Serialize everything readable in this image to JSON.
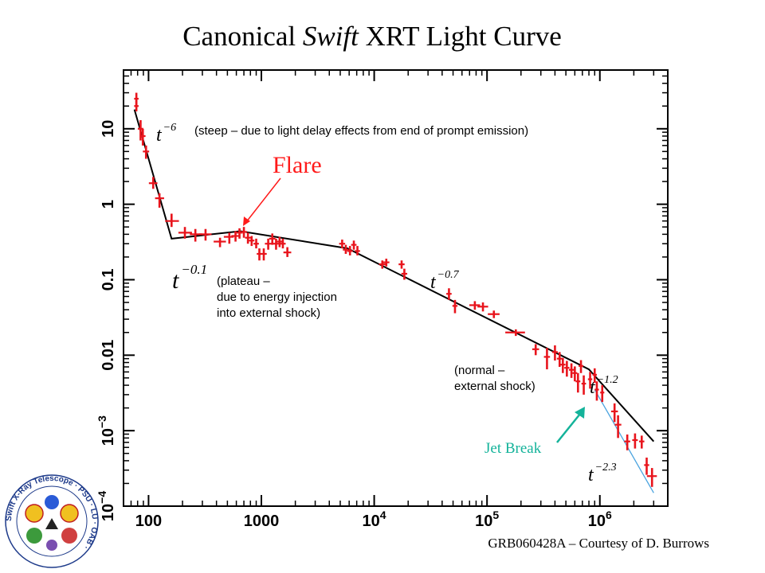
{
  "slide": {
    "title_pre": "Canonical ",
    "title_italic": "Swift",
    "title_post": " XRT Light Curve",
    "credit": "GRB060428A – Courtesy of D. Burrows",
    "logo": {
      "icon": "swift-xrt-telescope-logo",
      "ring_text": "Swift X-Ray Telescope · PSU · LU · OAB ·"
    },
    "colors": {
      "data": "#e8141c",
      "model": "#000000",
      "jet": "#14b39a",
      "jet_line": "#4aa3df",
      "flare": "#ff1a1a"
    }
  },
  "chart_data": {
    "type": "scatter",
    "title": "Canonical Swift XRT Light Curve",
    "xlabel": "",
    "ylabel": "",
    "xscale": "log",
    "yscale": "log",
    "xlim": [
      60,
      4000000
    ],
    "ylim": [
      0.0001,
      60
    ],
    "x_ticks": [
      {
        "value": 100,
        "label": "100"
      },
      {
        "value": 1000,
        "label": "1000"
      },
      {
        "value": 10000,
        "base": "10",
        "exp": "4"
      },
      {
        "value": 100000,
        "base": "10",
        "exp": "5"
      },
      {
        "value": 1000000,
        "base": "10",
        "exp": "6"
      }
    ],
    "y_ticks": [
      {
        "value": 0.0001,
        "base": "10",
        "exp": "−4"
      },
      {
        "value": 0.001,
        "base": "10",
        "exp": "−3"
      },
      {
        "value": 0.01,
        "label": "0.01"
      },
      {
        "value": 0.1,
        "label": "0.1"
      },
      {
        "value": 1,
        "label": "1"
      },
      {
        "value": 10,
        "label": "10"
      }
    ],
    "grid": false,
    "points": [
      {
        "x": 78,
        "y": 25,
        "yl": 20,
        "yh": 30,
        "xl": 77,
        "xh": 79
      },
      {
        "x": 78,
        "y": 20,
        "yl": 17,
        "yh": 24,
        "xl": 77,
        "xh": 79
      },
      {
        "x": 85,
        "y": 10,
        "yl": 7,
        "yh": 13,
        "xl": 83,
        "xh": 87
      },
      {
        "x": 89,
        "y": 8,
        "yl": 6,
        "yh": 10,
        "xl": 87,
        "xh": 91
      },
      {
        "x": 95,
        "y": 5,
        "yl": 4,
        "yh": 6,
        "xl": 92,
        "xh": 98
      },
      {
        "x": 110,
        "y": 1.9,
        "yl": 1.6,
        "yh": 2.3,
        "xl": 104,
        "xh": 116
      },
      {
        "x": 125,
        "y": 1.2,
        "yl": 0.9,
        "yh": 1.4,
        "xl": 118,
        "xh": 133
      },
      {
        "x": 160,
        "y": 0.6,
        "yl": 0.5,
        "yh": 0.75,
        "xl": 145,
        "xh": 180
      },
      {
        "x": 210,
        "y": 0.42,
        "yl": 0.35,
        "yh": 0.5,
        "xl": 190,
        "xh": 235
      },
      {
        "x": 260,
        "y": 0.4,
        "yl": 0.32,
        "yh": 0.47,
        "xl": 240,
        "xh": 290
      },
      {
        "x": 320,
        "y": 0.4,
        "yl": 0.33,
        "yh": 0.47,
        "xl": 290,
        "xh": 350
      },
      {
        "x": 430,
        "y": 0.32,
        "yl": 0.27,
        "yh": 0.36,
        "xl": 390,
        "xh": 470
      },
      {
        "x": 520,
        "y": 0.37,
        "yl": 0.3,
        "yh": 0.42,
        "xl": 480,
        "xh": 550
      },
      {
        "x": 590,
        "y": 0.38,
        "yl": 0.32,
        "yh": 0.44,
        "xl": 560,
        "xh": 620
      },
      {
        "x": 640,
        "y": 0.42,
        "yl": 0.35,
        "yh": 0.48,
        "xl": 620,
        "xh": 660
      },
      {
        "x": 700,
        "y": 0.43,
        "yl": 0.36,
        "yh": 0.5,
        "xl": 680,
        "xh": 720
      },
      {
        "x": 760,
        "y": 0.36,
        "yl": 0.3,
        "yh": 0.42,
        "xl": 740,
        "xh": 780
      },
      {
        "x": 820,
        "y": 0.33,
        "yl": 0.28,
        "yh": 0.38,
        "xl": 800,
        "xh": 840
      },
      {
        "x": 900,
        "y": 0.3,
        "yl": 0.26,
        "yh": 0.35,
        "xl": 880,
        "xh": 920
      },
      {
        "x": 960,
        "y": 0.22,
        "yl": 0.18,
        "yh": 0.26,
        "xl": 940,
        "xh": 980
      },
      {
        "x": 1050,
        "y": 0.22,
        "yl": 0.18,
        "yh": 0.26,
        "xl": 1020,
        "xh": 1080
      },
      {
        "x": 1150,
        "y": 0.3,
        "yl": 0.25,
        "yh": 0.35,
        "xl": 1110,
        "xh": 1190
      },
      {
        "x": 1250,
        "y": 0.35,
        "yl": 0.29,
        "yh": 0.41,
        "xl": 1210,
        "xh": 1290
      },
      {
        "x": 1350,
        "y": 0.3,
        "yl": 0.25,
        "yh": 0.35,
        "xl": 1310,
        "xh": 1390
      },
      {
        "x": 1450,
        "y": 0.32,
        "yl": 0.27,
        "yh": 0.37,
        "xl": 1410,
        "xh": 1490
      },
      {
        "x": 1550,
        "y": 0.3,
        "yl": 0.26,
        "yh": 0.35,
        "xl": 1510,
        "xh": 1590
      },
      {
        "x": 1700,
        "y": 0.23,
        "yl": 0.2,
        "yh": 0.27,
        "xl": 1620,
        "xh": 1780
      },
      {
        "x": 5200,
        "y": 0.3,
        "yl": 0.26,
        "yh": 0.34,
        "xl": 5050,
        "xh": 5350
      },
      {
        "x": 5600,
        "y": 0.25,
        "yl": 0.22,
        "yh": 0.29,
        "xl": 5450,
        "xh": 5750
      },
      {
        "x": 6100,
        "y": 0.24,
        "yl": 0.21,
        "yh": 0.28,
        "xl": 5950,
        "xh": 6250
      },
      {
        "x": 6600,
        "y": 0.29,
        "yl": 0.25,
        "yh": 0.33,
        "xl": 6450,
        "xh": 6750
      },
      {
        "x": 7100,
        "y": 0.24,
        "yl": 0.21,
        "yh": 0.28,
        "xl": 6950,
        "xh": 7250
      },
      {
        "x": 11800,
        "y": 0.16,
        "yl": 0.14,
        "yh": 0.18,
        "xl": 11400,
        "xh": 12200
      },
      {
        "x": 12800,
        "y": 0.17,
        "yl": 0.15,
        "yh": 0.19,
        "xl": 12400,
        "xh": 13200
      },
      {
        "x": 17500,
        "y": 0.16,
        "yl": 0.14,
        "yh": 0.18,
        "xl": 17000,
        "xh": 18000
      },
      {
        "x": 18500,
        "y": 0.12,
        "yl": 0.1,
        "yh": 0.14,
        "xl": 18000,
        "xh": 19000
      },
      {
        "x": 46000,
        "y": 0.065,
        "yl": 0.054,
        "yh": 0.077,
        "xl": 45000,
        "xh": 47000
      },
      {
        "x": 52000,
        "y": 0.045,
        "yl": 0.036,
        "yh": 0.054,
        "xl": 51000,
        "xh": 53000
      },
      {
        "x": 78000,
        "y": 0.046,
        "yl": 0.04,
        "yh": 0.052,
        "xl": 72000,
        "xh": 84000
      },
      {
        "x": 92000,
        "y": 0.044,
        "yl": 0.038,
        "yh": 0.05,
        "xl": 85000,
        "xh": 99000
      },
      {
        "x": 115000,
        "y": 0.035,
        "yl": 0.031,
        "yh": 0.039,
        "xl": 105000,
        "xh": 125000
      },
      {
        "x": 180000,
        "y": 0.02,
        "yl": 0.018,
        "yh": 0.022,
        "xl": 150000,
        "xh": 210000
      },
      {
        "x": 270000,
        "y": 0.012,
        "yl": 0.01,
        "yh": 0.014,
        "xl": 260000,
        "xh": 280000
      },
      {
        "x": 340000,
        "y": 0.0095,
        "yl": 0.0065,
        "yh": 0.0125,
        "xl": 330000,
        "xh": 350000
      },
      {
        "x": 400000,
        "y": 0.011,
        "yl": 0.0085,
        "yh": 0.0135,
        "xl": 390000,
        "xh": 410000
      },
      {
        "x": 440000,
        "y": 0.009,
        "yl": 0.007,
        "yh": 0.011,
        "xl": 430000,
        "xh": 450000
      },
      {
        "x": 470000,
        "y": 0.0075,
        "yl": 0.0058,
        "yh": 0.0092,
        "xl": 460000,
        "xh": 480000
      },
      {
        "x": 510000,
        "y": 0.0068,
        "yl": 0.0052,
        "yh": 0.0084,
        "xl": 500000,
        "xh": 520000
      },
      {
        "x": 560000,
        "y": 0.0064,
        "yl": 0.005,
        "yh": 0.0078,
        "xl": 550000,
        "xh": 570000
      },
      {
        "x": 600000,
        "y": 0.0058,
        "yl": 0.0045,
        "yh": 0.0071,
        "xl": 590000,
        "xh": 610000
      },
      {
        "x": 640000,
        "y": 0.0045,
        "yl": 0.0032,
        "yh": 0.0058,
        "xl": 630000,
        "xh": 650000
      },
      {
        "x": 680000,
        "y": 0.0072,
        "yl": 0.0058,
        "yh": 0.0086,
        "xl": 670000,
        "xh": 690000
      },
      {
        "x": 720000,
        "y": 0.0042,
        "yl": 0.003,
        "yh": 0.0054,
        "xl": 710000,
        "xh": 730000
      },
      {
        "x": 820000,
        "y": 0.0048,
        "yl": 0.0036,
        "yh": 0.006,
        "xl": 810000,
        "xh": 830000
      },
      {
        "x": 900000,
        "y": 0.0055,
        "yl": 0.0043,
        "yh": 0.0067,
        "xl": 890000,
        "xh": 910000
      },
      {
        "x": 940000,
        "y": 0.0035,
        "yl": 0.0025,
        "yh": 0.0045,
        "xl": 930000,
        "xh": 950000
      },
      {
        "x": 1050000,
        "y": 0.0032,
        "yl": 0.0024,
        "yh": 0.004,
        "xl": 1040000,
        "xh": 1060000
      },
      {
        "x": 1350000,
        "y": 0.0018,
        "yl": 0.0013,
        "yh": 0.0023,
        "xl": 1300000,
        "xh": 1400000
      },
      {
        "x": 1450000,
        "y": 0.0012,
        "yl": 0.0008,
        "yh": 0.0016,
        "xl": 1400000,
        "xh": 1500000
      },
      {
        "x": 1750000,
        "y": 0.00072,
        "yl": 0.00055,
        "yh": 0.00089,
        "xl": 1700000,
        "xh": 1800000
      },
      {
        "x": 2050000,
        "y": 0.00075,
        "yl": 0.00058,
        "yh": 0.00092,
        "xl": 2000000,
        "xh": 2100000
      },
      {
        "x": 2350000,
        "y": 0.00072,
        "yl": 0.00058,
        "yh": 0.00086,
        "xl": 2300000,
        "xh": 2400000
      },
      {
        "x": 2600000,
        "y": 0.00035,
        "yl": 0.00026,
        "yh": 0.00044,
        "xl": 2550000,
        "xh": 2650000
      },
      {
        "x": 2900000,
        "y": 0.00025,
        "yl": 0.00018,
        "yh": 0.00032,
        "xl": 2700000,
        "xh": 3100000
      }
    ],
    "model": {
      "name": "broken power-law fit",
      "x": [
        75,
        160,
        650,
        5800,
        800000,
        3000000
      ],
      "y": [
        18,
        0.35,
        0.44,
        0.26,
        0.0065,
        0.00072
      ]
    },
    "jet_break_line": {
      "x": [
        900000,
        3000000
      ],
      "y": [
        0.0035,
        0.00015
      ]
    },
    "annotations": {
      "steep": {
        "base": "t",
        "exp": "−6",
        "note": "(steep – due to light delay effects from end of prompt emission)"
      },
      "plateau": {
        "base": "t",
        "exp": "−0.1",
        "note_lines": [
          "(plateau –",
          "due to energy injection",
          "into external shock)"
        ]
      },
      "normal": {
        "base": "t",
        "exp": "−0.7",
        "note_lines": [
          "(normal –",
          "external shock)"
        ]
      },
      "post_break": {
        "base": "t",
        "exp": "−1.2"
      },
      "jet": {
        "base": "t",
        "exp": "−2.3",
        "label": "Jet Break"
      },
      "flare": {
        "label": "Flare"
      }
    }
  }
}
